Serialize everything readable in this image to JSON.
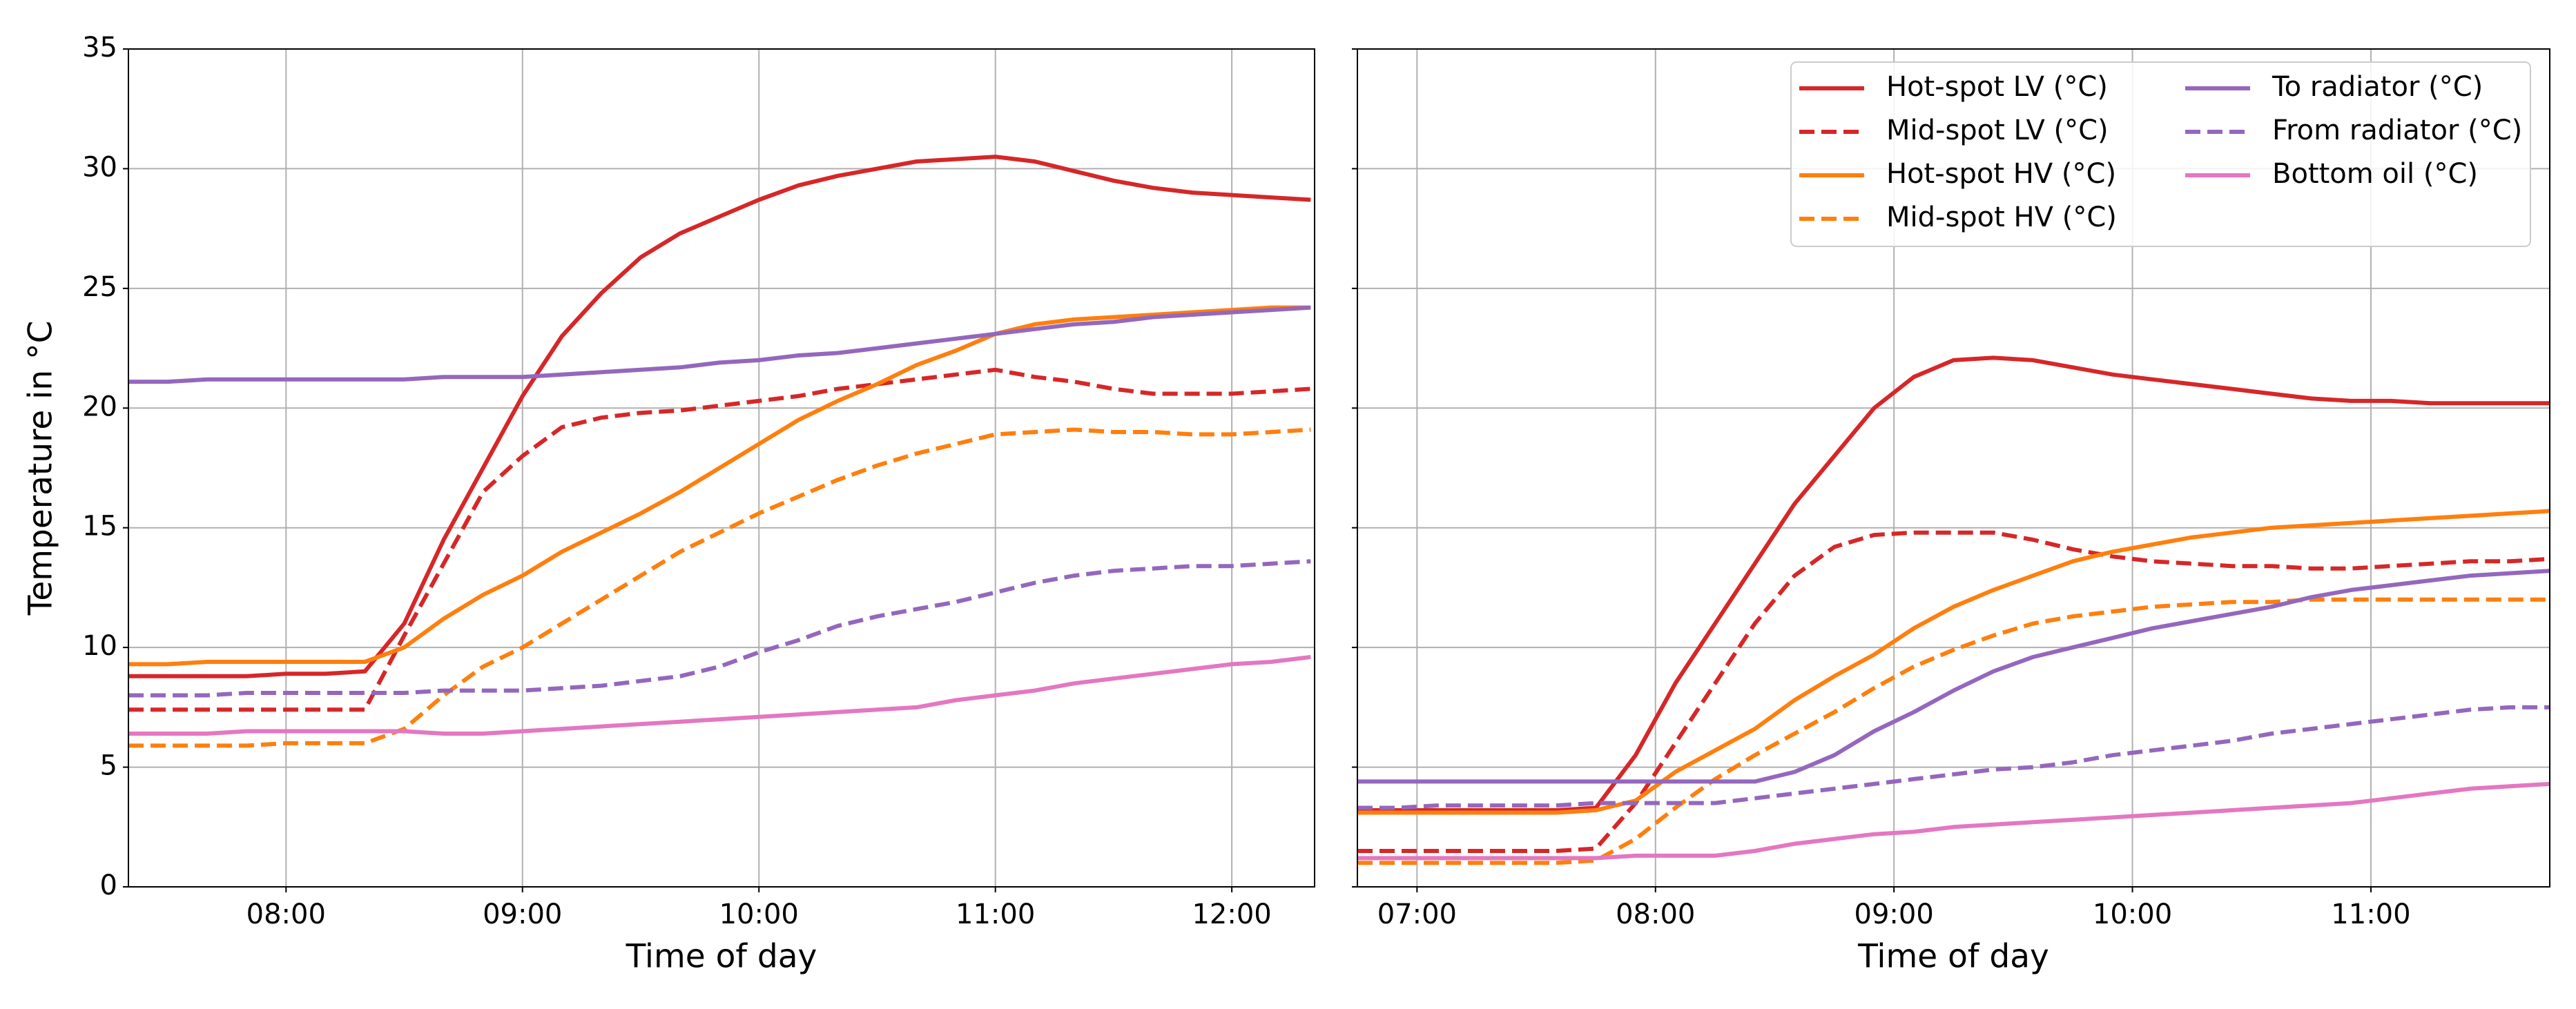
{
  "chart_data": [
    {
      "type": "line",
      "xlabel": "Time of day",
      "ylabel": "Temperature in °C",
      "x": [
        "07:20",
        "07:30",
        "07:40",
        "07:50",
        "08:00",
        "08:10",
        "08:20",
        "08:30",
        "08:40",
        "08:50",
        "09:00",
        "09:10",
        "09:20",
        "09:30",
        "09:40",
        "09:50",
        "10:00",
        "10:10",
        "10:20",
        "10:30",
        "10:40",
        "10:50",
        "11:00",
        "11:10",
        "11:20",
        "11:30",
        "11:40",
        "11:50",
        "12:00",
        "12:10",
        "12:20"
      ],
      "xlim": [
        "07:20",
        "12:21"
      ],
      "xticks": [
        "08:00",
        "09:00",
        "10:00",
        "11:00",
        "12:00"
      ],
      "ylim": [
        0,
        35
      ],
      "yticks": [
        0,
        5,
        10,
        15,
        20,
        25,
        30,
        35
      ],
      "grid": true,
      "series": [
        {
          "color": "#d62728",
          "dashed": false,
          "values": [
            8.8,
            8.8,
            8.8,
            8.8,
            8.9,
            8.9,
            9.0,
            11,
            14.5,
            17.5,
            20.5,
            23,
            24.8,
            26.3,
            27.3,
            28,
            28.7,
            29.3,
            29.7,
            30,
            30.3,
            30.4,
            30.5,
            30.3,
            29.9,
            29.5,
            29.2,
            29.0,
            28.9,
            28.8,
            28.7
          ]
        },
        {
          "color": "#d62728",
          "dashed": true,
          "values": [
            7.4,
            7.4,
            7.4,
            7.4,
            7.4,
            7.4,
            7.4,
            10.5,
            13.5,
            16.5,
            18,
            19.2,
            19.6,
            19.8,
            19.9,
            20.1,
            20.3,
            20.5,
            20.8,
            21,
            21.2,
            21.4,
            21.6,
            21.3,
            21.1,
            20.8,
            20.6,
            20.6,
            20.6,
            20.7,
            20.8
          ]
        },
        {
          "color": "#ff7f0e",
          "dashed": false,
          "values": [
            9.3,
            9.3,
            9.4,
            9.4,
            9.4,
            9.4,
            9.4,
            10,
            11.2,
            12.2,
            13,
            14,
            14.8,
            15.6,
            16.5,
            17.5,
            18.5,
            19.5,
            20.3,
            21,
            21.8,
            22.4,
            23.1,
            23.5,
            23.7,
            23.8,
            23.9,
            24.0,
            24.1,
            24.2,
            24.2
          ]
        },
        {
          "color": "#ff7f0e",
          "dashed": true,
          "values": [
            5.9,
            5.9,
            5.9,
            5.9,
            6.0,
            6.0,
            6.0,
            6.6,
            8,
            9.2,
            10,
            11,
            12,
            13,
            14,
            14.8,
            15.6,
            16.3,
            17,
            17.6,
            18.1,
            18.5,
            18.9,
            19.0,
            19.1,
            19.0,
            19.0,
            18.9,
            18.9,
            19.0,
            19.1
          ]
        },
        {
          "color": "#9467bd",
          "dashed": false,
          "values": [
            21.1,
            21.1,
            21.2,
            21.2,
            21.2,
            21.2,
            21.2,
            21.2,
            21.3,
            21.3,
            21.3,
            21.4,
            21.5,
            21.6,
            21.7,
            21.9,
            22.0,
            22.2,
            22.3,
            22.5,
            22.7,
            22.9,
            23.1,
            23.3,
            23.5,
            23.6,
            23.8,
            23.9,
            24.0,
            24.1,
            24.2
          ]
        },
        {
          "color": "#9467bd",
          "dashed": true,
          "values": [
            8.0,
            8.0,
            8.0,
            8.1,
            8.1,
            8.1,
            8.1,
            8.1,
            8.2,
            8.2,
            8.2,
            8.3,
            8.4,
            8.6,
            8.8,
            9.2,
            9.8,
            10.3,
            10.9,
            11.3,
            11.6,
            11.9,
            12.3,
            12.7,
            13.0,
            13.2,
            13.3,
            13.4,
            13.4,
            13.5,
            13.6
          ]
        },
        {
          "color": "#e377c2",
          "dashed": false,
          "values": [
            6.4,
            6.4,
            6.4,
            6.5,
            6.5,
            6.5,
            6.5,
            6.5,
            6.4,
            6.4,
            6.5,
            6.6,
            6.7,
            6.8,
            6.9,
            7.0,
            7.1,
            7.2,
            7.3,
            7.4,
            7.5,
            7.8,
            8.0,
            8.2,
            8.5,
            8.7,
            8.9,
            9.1,
            9.3,
            9.4,
            9.6
          ]
        }
      ]
    },
    {
      "type": "line",
      "xlabel": "Time of day",
      "legend": "upper right",
      "yticklabels": false,
      "x": [
        "06:45",
        "06:55",
        "07:05",
        "07:15",
        "07:25",
        "07:35",
        "07:45",
        "07:55",
        "08:05",
        "08:15",
        "08:25",
        "08:35",
        "08:45",
        "08:55",
        "09:05",
        "09:15",
        "09:25",
        "09:35",
        "09:45",
        "09:55",
        "10:05",
        "10:15",
        "10:25",
        "10:35",
        "10:45",
        "10:55",
        "11:05",
        "11:15",
        "11:25",
        "11:35",
        "11:45"
      ],
      "xlim": [
        "06:45",
        "11:45"
      ],
      "xticks": [
        "07:00",
        "08:00",
        "09:00",
        "10:00",
        "11:00"
      ],
      "ylim": [
        0,
        35
      ],
      "yticks": [
        0,
        5,
        10,
        15,
        20,
        25,
        30,
        35
      ],
      "grid": true,
      "series": [
        {
          "name": "Hot-spot LV (°C)",
          "color": "#d62728",
          "dashed": false,
          "values": [
            3.2,
            3.2,
            3.2,
            3.2,
            3.2,
            3.2,
            3.3,
            5.5,
            8.5,
            11,
            13.5,
            16,
            18,
            20,
            21.3,
            22.0,
            22.1,
            22.0,
            21.7,
            21.4,
            21.2,
            21.0,
            20.8,
            20.6,
            20.4,
            20.3,
            20.3,
            20.2,
            20.2,
            20.2,
            20.2
          ]
        },
        {
          "name": "Mid-spot LV (°C)",
          "color": "#d62728",
          "dashed": true,
          "values": [
            1.5,
            1.5,
            1.5,
            1.5,
            1.5,
            1.5,
            1.6,
            3.5,
            6,
            8.5,
            11,
            13,
            14.2,
            14.7,
            14.8,
            14.8,
            14.8,
            14.5,
            14.1,
            13.8,
            13.6,
            13.5,
            13.4,
            13.4,
            13.3,
            13.3,
            13.4,
            13.5,
            13.6,
            13.6,
            13.7
          ]
        },
        {
          "name": "Hot-spot HV (°C)",
          "color": "#ff7f0e",
          "dashed": false,
          "values": [
            3.1,
            3.1,
            3.1,
            3.1,
            3.1,
            3.1,
            3.2,
            3.6,
            4.8,
            5.7,
            6.6,
            7.8,
            8.8,
            9.7,
            10.8,
            11.7,
            12.4,
            13.0,
            13.6,
            14.0,
            14.3,
            14.6,
            14.8,
            15.0,
            15.1,
            15.2,
            15.3,
            15.4,
            15.5,
            15.6,
            15.7
          ]
        },
        {
          "name": "Mid-spot HV (°C)",
          "color": "#ff7f0e",
          "dashed": true,
          "values": [
            1.0,
            1.0,
            1.0,
            1.0,
            1.0,
            1.0,
            1.1,
            2.0,
            3.3,
            4.5,
            5.5,
            6.4,
            7.3,
            8.3,
            9.2,
            9.9,
            10.5,
            11.0,
            11.3,
            11.5,
            11.7,
            11.8,
            11.9,
            11.9,
            12.0,
            12.0,
            12.0,
            12.0,
            12.0,
            12.0,
            12.0
          ]
        },
        {
          "name": "To radiator (°C)",
          "color": "#9467bd",
          "dashed": false,
          "values": [
            4.4,
            4.4,
            4.4,
            4.4,
            4.4,
            4.4,
            4.4,
            4.4,
            4.4,
            4.4,
            4.4,
            4.8,
            5.5,
            6.5,
            7.3,
            8.2,
            9.0,
            9.6,
            10.0,
            10.4,
            10.8,
            11.1,
            11.4,
            11.7,
            12.1,
            12.4,
            12.6,
            12.8,
            13.0,
            13.1,
            13.2
          ]
        },
        {
          "name": "From radiator (°C)",
          "color": "#9467bd",
          "dashed": true,
          "values": [
            3.3,
            3.3,
            3.4,
            3.4,
            3.4,
            3.4,
            3.5,
            3.5,
            3.5,
            3.5,
            3.7,
            3.9,
            4.1,
            4.3,
            4.5,
            4.7,
            4.9,
            5.0,
            5.2,
            5.5,
            5.7,
            5.9,
            6.1,
            6.4,
            6.6,
            6.8,
            7.0,
            7.2,
            7.4,
            7.5,
            7.5
          ]
        },
        {
          "name": "Bottom oil (°C)",
          "color": "#e377c2",
          "dashed": false,
          "values": [
            1.2,
            1.2,
            1.2,
            1.2,
            1.2,
            1.2,
            1.2,
            1.3,
            1.3,
            1.3,
            1.5,
            1.8,
            2.0,
            2.2,
            2.3,
            2.5,
            2.6,
            2.7,
            2.8,
            2.9,
            3.0,
            3.1,
            3.2,
            3.3,
            3.4,
            3.5,
            3.7,
            3.9,
            4.1,
            4.2,
            4.3
          ]
        }
      ]
    }
  ]
}
